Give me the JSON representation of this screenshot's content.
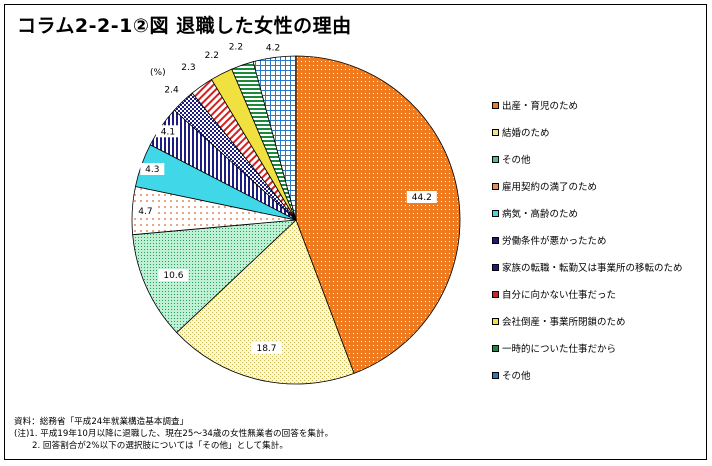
{
  "title": "コラム2-2-1②図 退職した女性の理由",
  "chart_data": {
    "type": "pie",
    "unit_label": "(%)",
    "start": "12 o'clock",
    "direction": "clockwise",
    "slices": [
      {
        "label": "出産・育児のため",
        "value": 44.2,
        "display": "44.2",
        "color": "#f07a1e",
        "pattern": "dots"
      },
      {
        "label": "結婚のため",
        "value": 18.7,
        "display": "18.7",
        "color": "#eee48a",
        "pattern": "grid-fine"
      },
      {
        "label": "その他",
        "value": 10.6,
        "display": "10.6",
        "color": "#3cc88c",
        "pattern": "fine"
      },
      {
        "label": "雇用契約の満了のため",
        "value": 4.7,
        "display": "4.7",
        "color": "#e88a5a",
        "pattern": "dots-sparse"
      },
      {
        "label": "病気・高齢のため",
        "value": 4.3,
        "display": "4.3",
        "color": "#40d8e8",
        "pattern": "solid"
      },
      {
        "label": "労働条件が悪かったため",
        "value": 4.1,
        "display": "4.1",
        "color": "#1c1c80",
        "pattern": "vstripes"
      },
      {
        "label": "家族の転職・転勤又は事業所の移転のため",
        "value": 2.4,
        "display": "2.4",
        "color": "#1c1c80",
        "pattern": "checker"
      },
      {
        "label": "自分に向かない仕事だった",
        "value": 2.3,
        "display": "2.3",
        "color": "#d42020",
        "pattern": "diag"
      },
      {
        "label": "会社倒産・事業所閉鎖のため",
        "value": 2.2,
        "display": "2.2",
        "color": "#f0e040",
        "pattern": "solid"
      },
      {
        "label": "一時的についた仕事だから",
        "value": 2.2,
        "display": "2.2",
        "color": "#1a8a3a",
        "pattern": "hstripes"
      },
      {
        "label": "その他",
        "value": 4.2,
        "display": "4.2",
        "color": "#2a78c8",
        "pattern": "grid"
      }
    ]
  },
  "notes": [
    "資料：総務省「平成24年就業構造基本調査」",
    "(注)1. 平成19年10月以降に退職した、現在25～34歳の女性無業者の回答を集計。",
    "2. 回答割合が2%以下の選択肢については「その他」として集計。"
  ]
}
